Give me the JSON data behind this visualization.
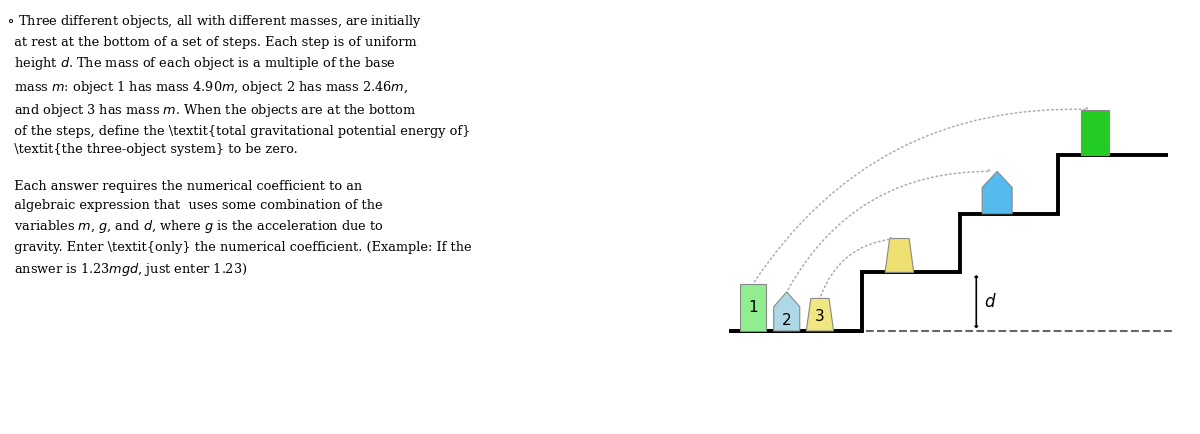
{
  "fig_width": 12.0,
  "fig_height": 4.34,
  "dpi": 100,
  "background_color": "white",
  "step_color": "black",
  "step_linewidth": 2.8,
  "dashed_color": "#666666",
  "arrow_color": "#aaaaaa",
  "d_arrow_color": "black",
  "text_color": "black",
  "obj1_color": "#90EE90",
  "obj2_color": "#ADD8E6",
  "obj3_color": "#F0E682",
  "dest1_color": "#22CC22",
  "dest2_color": "#55BBEE",
  "dest3_color": "#EEE070",
  "label1": "1",
  "label2": "2",
  "label3": "3",
  "d_label": "d",
  "xlim": [
    0,
    10.5
  ],
  "ylim": [
    -0.3,
    3.8
  ]
}
